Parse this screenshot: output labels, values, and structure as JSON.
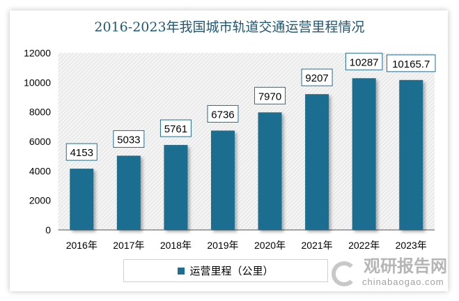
{
  "chart_data": {
    "type": "bar",
    "title": "2016-2023年我国城市轨道交通运营里程情况",
    "categories": [
      "2016年",
      "2017年",
      "2018年",
      "2019年",
      "2020年",
      "2021年",
      "2022年",
      "2023年"
    ],
    "series": [
      {
        "name": "运营里程（公里）",
        "values": [
          4153,
          5033,
          5761,
          6736,
          7970,
          9207,
          10287,
          10165.7
        ],
        "color": "#1e6e91"
      }
    ],
    "data_labels": [
      "4153",
      "5033",
      "5761",
      "6736",
      "7970",
      "9207",
      "10287",
      "10165.7"
    ],
    "yticks": [
      "0",
      "2000",
      "4000",
      "6000",
      "8000",
      "10000",
      "12000"
    ],
    "ylim": [
      0,
      12000
    ],
    "xlabel": "",
    "ylabel": "",
    "legend_position": "bottom",
    "grid": false
  },
  "watermark": {
    "cn": "观研报告网",
    "en": "chinabaogao.com"
  }
}
